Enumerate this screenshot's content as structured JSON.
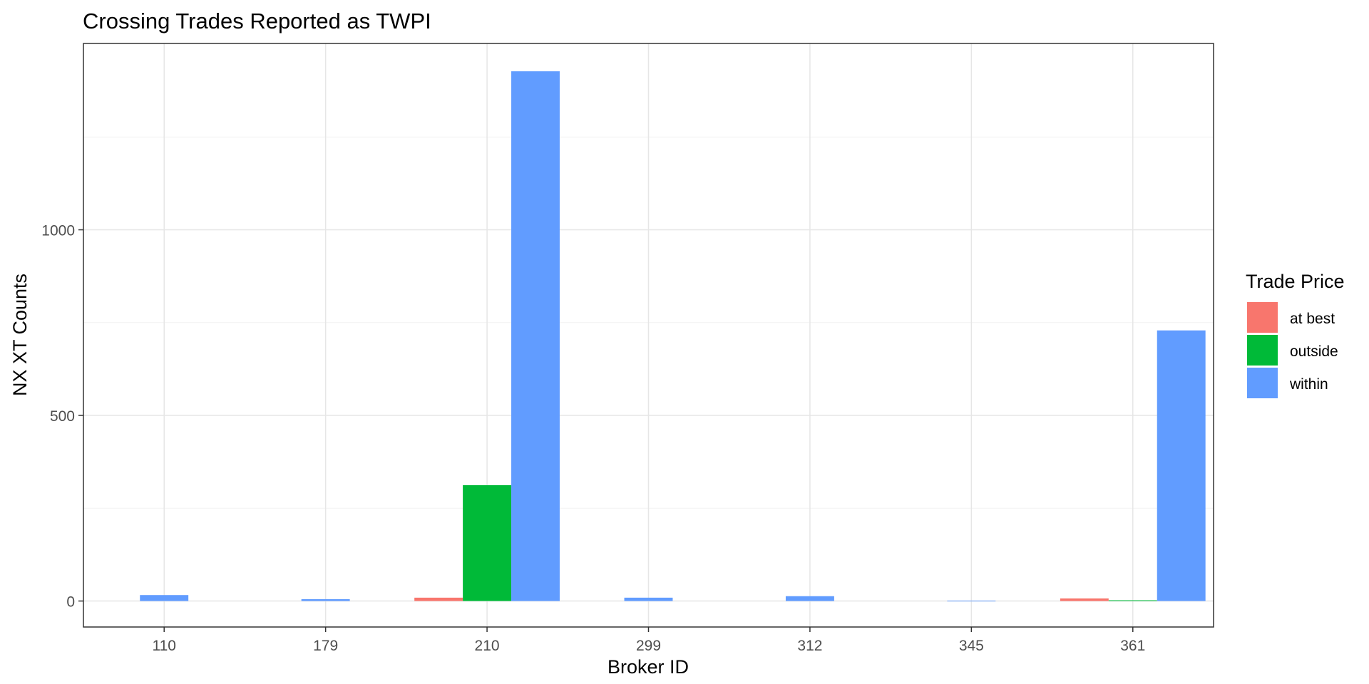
{
  "chart_data": {
    "type": "bar",
    "title": "Crossing Trades Reported as TWPI",
    "xlabel": "Broker ID",
    "ylabel": "NX XT Counts",
    "categories": [
      "110",
      "179",
      "210",
      "299",
      "312",
      "345",
      "361"
    ],
    "yticks": [
      0,
      500,
      1000
    ],
    "ylim": [
      -70,
      1502
    ],
    "grid": true,
    "legend_title": "Trade Price",
    "legend_position": "right",
    "series": [
      {
        "name": "at best",
        "color": "#F8766D",
        "values": [
          null,
          null,
          9,
          null,
          null,
          null,
          7
        ]
      },
      {
        "name": "outside",
        "color": "#00BA38",
        "values": [
          null,
          null,
          312,
          null,
          null,
          null,
          2
        ]
      },
      {
        "name": "within",
        "color": "#619CFF",
        "values": [
          16,
          5,
          1427,
          9,
          13,
          1,
          729
        ]
      }
    ]
  }
}
